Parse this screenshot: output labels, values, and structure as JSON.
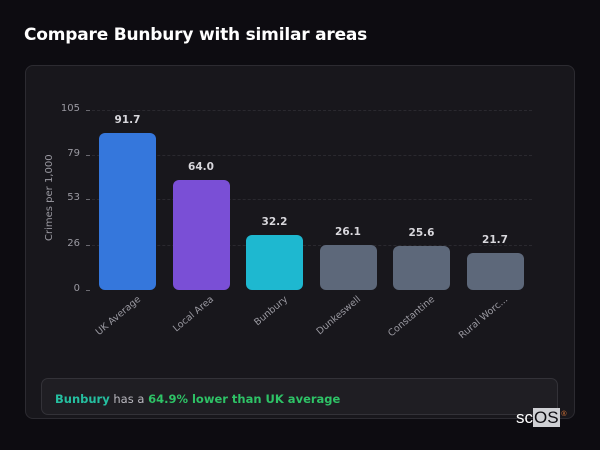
{
  "page": {
    "title": "Compare Bunbury with similar areas"
  },
  "chart_data": {
    "type": "bar",
    "title": "Compare Bunbury with similar areas",
    "xlabel": "",
    "ylabel": "Crimes per 1,000",
    "ylim": [
      0,
      105
    ],
    "yticks": [
      0,
      26,
      53,
      79,
      105
    ],
    "grid": true,
    "categories": [
      "UK Average",
      "Local Area",
      "Bunbury",
      "Dunkeswell",
      "Constantine",
      "Rural Worc..."
    ],
    "values": [
      91.7,
      64.0,
      32.2,
      26.1,
      25.6,
      21.7
    ],
    "value_labels": [
      "91.7",
      "64.0",
      "32.2",
      "26.1",
      "25.6",
      "21.7"
    ],
    "colors": [
      "#3577dc",
      "#7a4fd6",
      "#1eb8d0",
      "#5d687a",
      "#5d687a",
      "#5d687a"
    ],
    "legend": null
  },
  "summary": {
    "area": "Bunbury",
    "middle": " has a ",
    "difference": "64.9% lower than UK average"
  },
  "branding": {
    "logo_sc": "sc",
    "logo_os": "OS",
    "logo_reg": "®"
  }
}
